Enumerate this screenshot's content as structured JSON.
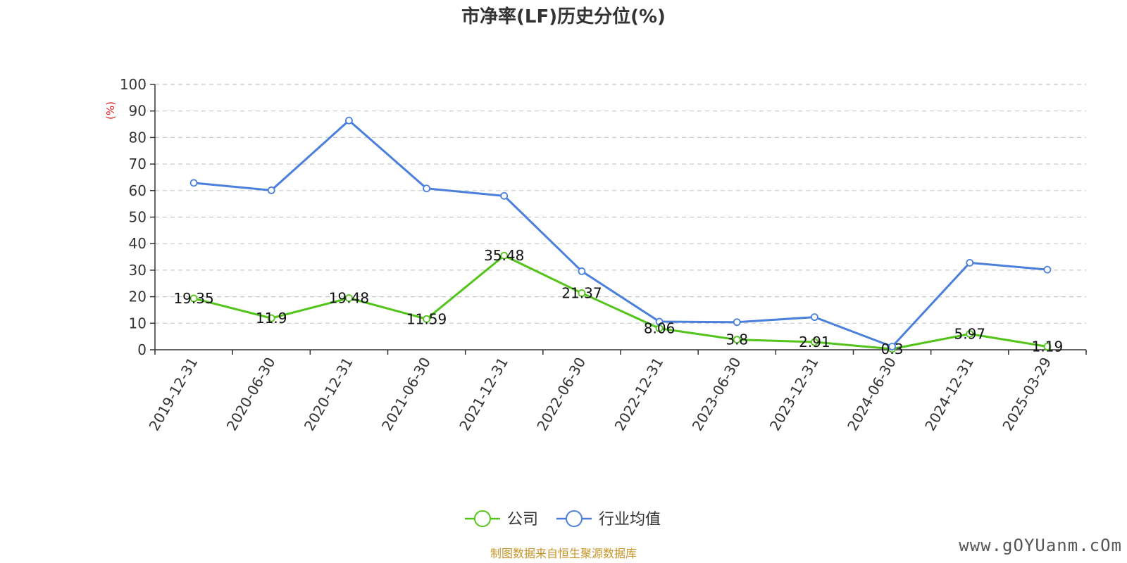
{
  "chart_data": {
    "type": "line",
    "title": "市净率(LF)历史分位(%)",
    "y_unit": "(%)",
    "ylim": [
      0,
      100
    ],
    "yticks": [
      0,
      10,
      20,
      30,
      40,
      50,
      60,
      70,
      80,
      90,
      100
    ],
    "grid": true,
    "legend_position": "bottom",
    "categories": [
      "2019-12-31",
      "2020-06-30",
      "2020-12-31",
      "2021-06-30",
      "2021-12-31",
      "2022-06-30",
      "2022-12-31",
      "2023-06-30",
      "2023-12-31",
      "2024-06-30",
      "2024-12-31",
      "2025-03-29"
    ],
    "series": [
      {
        "name": "公司",
        "color": "#52c41a",
        "values": [
          19.35,
          11.9,
          19.48,
          11.59,
          35.48,
          21.37,
          8.06,
          3.8,
          2.91,
          0.3,
          5.97,
          1.19
        ],
        "labels": [
          "19.35",
          "11.9",
          "19.48",
          "11.59",
          "35.48",
          "21.37",
          "8.06",
          "3.8",
          "2.91",
          "0.3",
          "5.97",
          "1.19"
        ]
      },
      {
        "name": "行业均值",
        "color": "#4a7fdc",
        "values": [
          62.9,
          60.1,
          86.4,
          60.8,
          58.0,
          29.6,
          10.6,
          10.4,
          12.3,
          1.2,
          32.8,
          30.2
        ]
      }
    ]
  },
  "source": {
    "text": "制图数据来自恒生聚源数据库",
    "color": "#c8942a"
  },
  "watermark": "www.gOYUanm.cOm",
  "colors": {
    "axis": "#333333",
    "grid": "#c8c8c8",
    "unit": "#e02020"
  }
}
